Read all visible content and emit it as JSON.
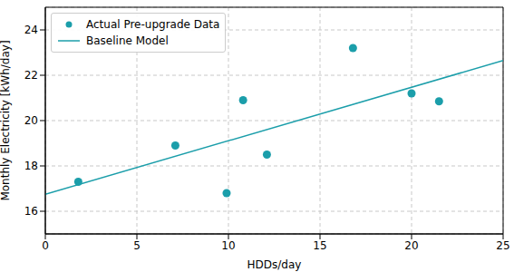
{
  "chart_data": {
    "type": "scatter",
    "x_label": "HDDs/day",
    "y_label": "Monthly Electricity [kWh/day]",
    "xlim": [
      0,
      25
    ],
    "xticks": [
      0,
      5,
      10,
      15,
      20,
      25
    ],
    "ylim": [
      15,
      25
    ],
    "yticks": [
      16,
      18,
      20,
      22,
      24
    ],
    "grid": true,
    "legend": "upper left",
    "series": [
      {
        "name": "Actual Pre-upgrade Data",
        "type": "scatter",
        "color": "#1b9eaa",
        "marker": "circle",
        "x": [
          1.8,
          7.1,
          9.9,
          10.8,
          12.1,
          16.8,
          20.0,
          21.5
        ],
        "values": [
          17.3,
          18.9,
          16.8,
          20.9,
          18.5,
          23.2,
          21.2,
          20.85
        ]
      },
      {
        "name": "Baseline Model",
        "type": "line",
        "color": "#1b9eaa",
        "line_style": "solid",
        "x": [
          0,
          25
        ],
        "values": [
          16.75,
          22.65
        ]
      }
    ]
  }
}
